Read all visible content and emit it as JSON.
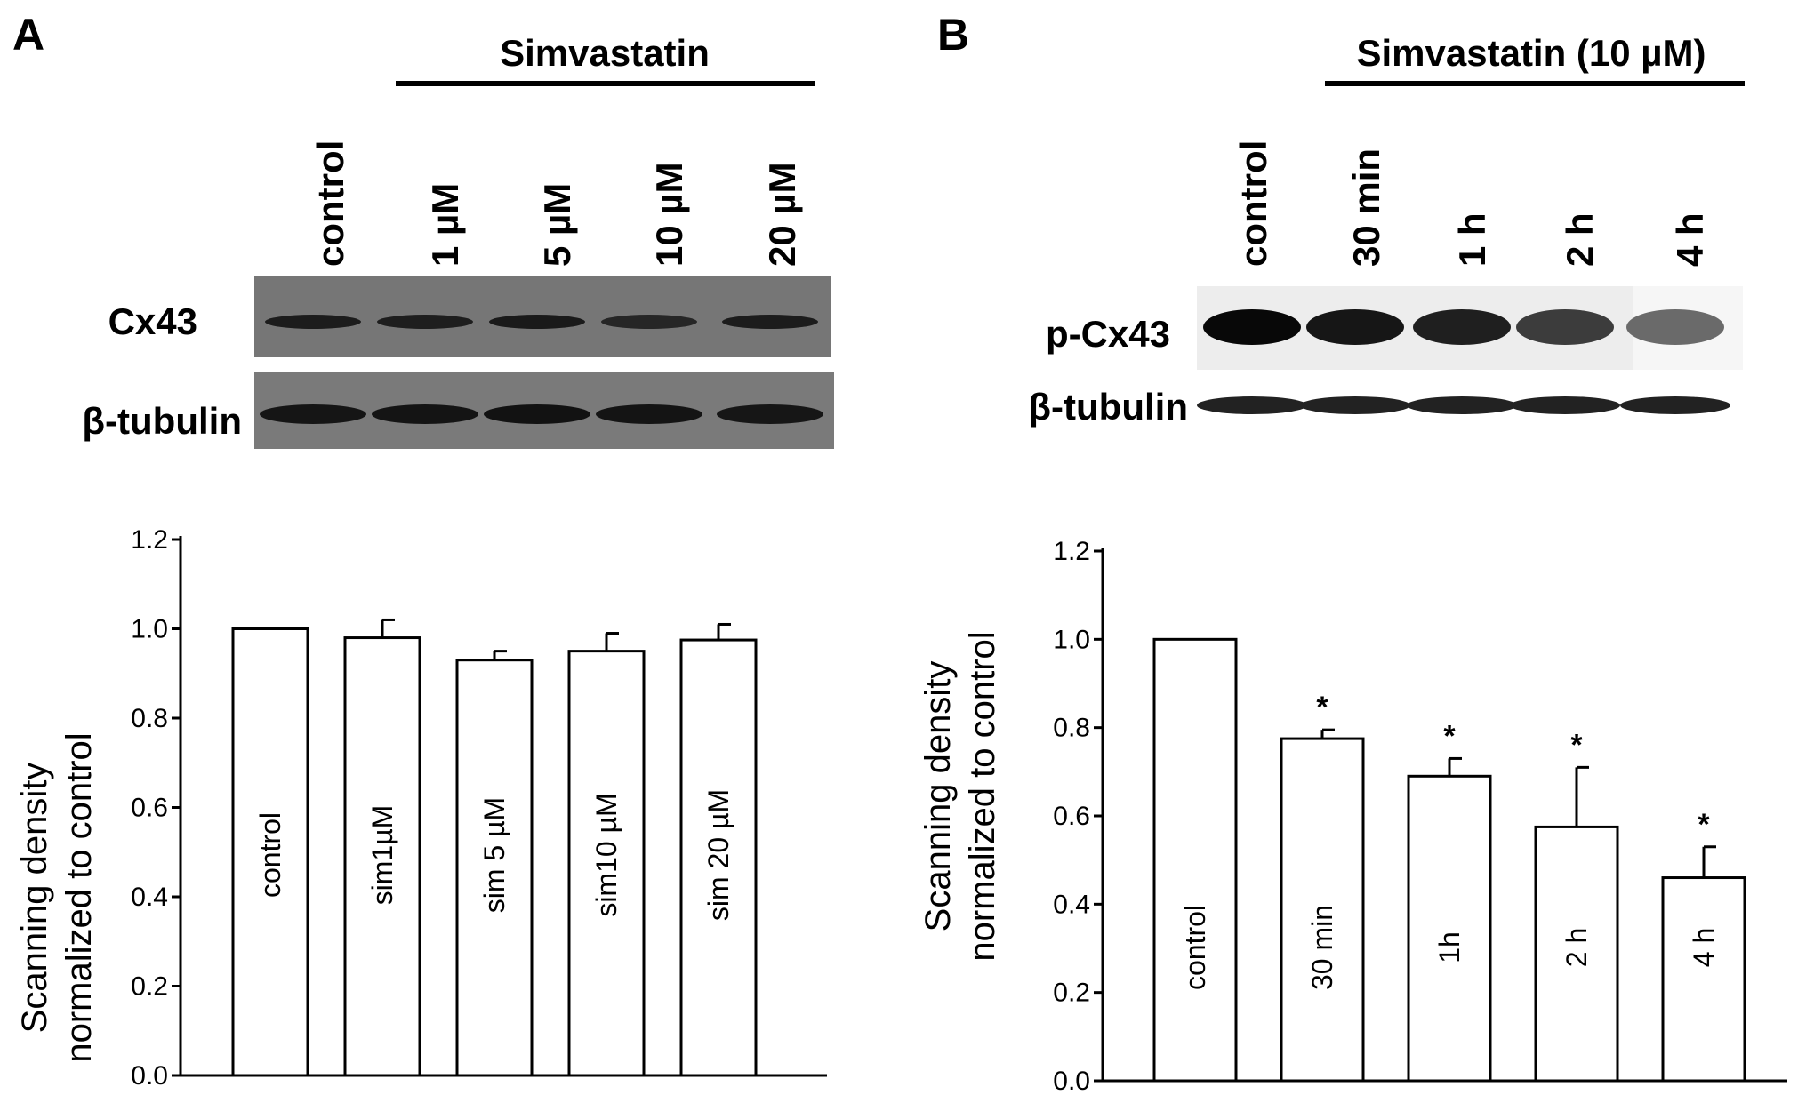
{
  "panel_a": {
    "letter": "A",
    "treatment": "Simvastatin",
    "lanes": [
      "control",
      "1 µM",
      "5 µM",
      "10 µM",
      "20 µM"
    ],
    "blots": [
      "Cx43",
      "β-tubulin"
    ]
  },
  "panel_b": {
    "letter": "B",
    "treatment": "Simvastatin (10 µM)",
    "lanes": [
      "control",
      "30 min",
      "1 h",
      "2 h",
      "4 h"
    ],
    "blots": [
      "p-Cx43",
      "β-tubulin"
    ]
  },
  "chart_data": [
    {
      "type": "bar",
      "panel": "A",
      "categories": [
        "control",
        "sim1µM",
        "sim 5 µM",
        "sim10 µM",
        "sim 20 µM"
      ],
      "values": [
        1.0,
        0.98,
        0.93,
        0.95,
        0.975
      ],
      "errors": [
        0.0,
        0.04,
        0.02,
        0.04,
        0.035
      ],
      "significance": [
        "",
        "",
        "",
        "",
        ""
      ],
      "ylabel_lines": [
        "Scanning density",
        "normalized to control"
      ],
      "ylim": [
        0.0,
        1.2
      ],
      "yticks": [
        "0.0",
        "0.2",
        "0.4",
        "0.6",
        "0.8",
        "1.0",
        "1.2"
      ],
      "grid": false
    },
    {
      "type": "bar",
      "panel": "B",
      "categories": [
        "control",
        "30 min",
        "1h",
        "2 h",
        "4 h"
      ],
      "values": [
        1.0,
        0.775,
        0.69,
        0.575,
        0.46
      ],
      "errors": [
        0.0,
        0.02,
        0.04,
        0.135,
        0.07
      ],
      "significance": [
        "",
        "*",
        "*",
        "*",
        "*"
      ],
      "ylabel_lines": [
        "Scanning density",
        "normalized to control"
      ],
      "ylim": [
        0.0,
        1.2
      ],
      "yticks": [
        "0.0",
        "0.2",
        "0.4",
        "0.6",
        "0.8",
        "1.0",
        "1.2"
      ],
      "grid": false
    }
  ]
}
